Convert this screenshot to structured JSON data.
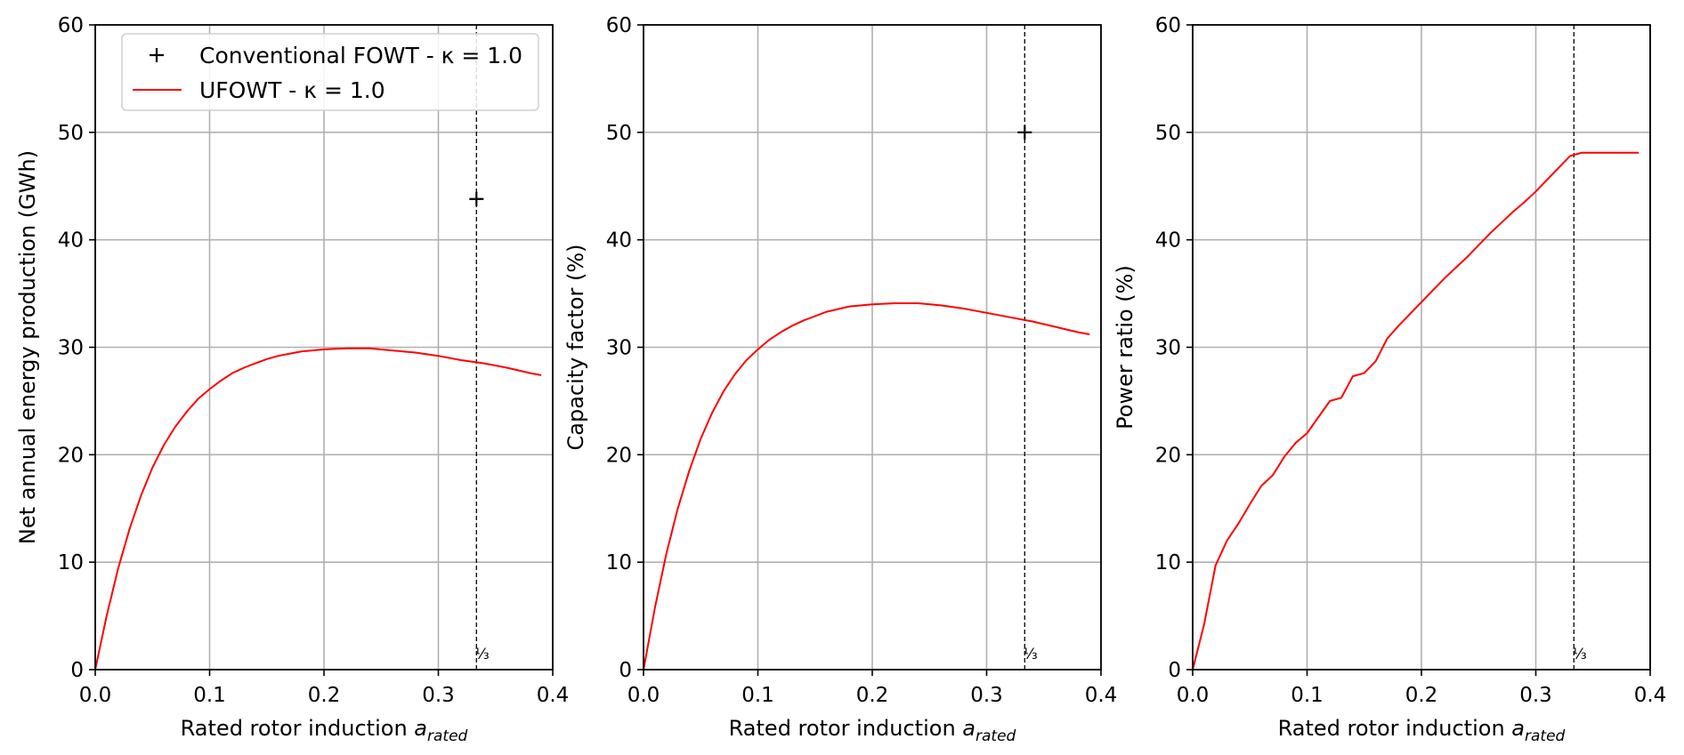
{
  "chart_data": [
    {
      "type": "line",
      "xlabel_main": "Rated rotor induction ",
      "xlabel_var": "a",
      "xlabel_sub": "rated",
      "ylabel": "Net annual energy production (GWh)",
      "xlim": [
        0.0,
        0.4
      ],
      "ylim": [
        0,
        60
      ],
      "xticks": [
        "0.0",
        "0.1",
        "0.2",
        "0.3",
        "0.4"
      ],
      "yticks": [
        "0",
        "10",
        "20",
        "30",
        "40",
        "50",
        "60"
      ],
      "grid": true,
      "legend_position": "top-left",
      "vline": {
        "x": 0.3333,
        "label": "⅓"
      },
      "series": [
        {
          "name": "UFOWT - κ = 1.0",
          "kind": "line",
          "color": "#ff0000",
          "x": [
            0.0,
            0.01,
            0.02,
            0.03,
            0.04,
            0.05,
            0.06,
            0.07,
            0.08,
            0.09,
            0.1,
            0.11,
            0.12,
            0.13,
            0.14,
            0.15,
            0.16,
            0.18,
            0.2,
            0.22,
            0.24,
            0.26,
            0.28,
            0.3,
            0.32,
            0.34,
            0.36,
            0.38,
            0.39
          ],
          "y": [
            0.0,
            5.0,
            9.4,
            13.1,
            16.2,
            18.8,
            20.9,
            22.6,
            24.0,
            25.2,
            26.1,
            26.9,
            27.6,
            28.1,
            28.5,
            28.9,
            29.2,
            29.6,
            29.8,
            29.9,
            29.9,
            29.7,
            29.5,
            29.2,
            28.8,
            28.5,
            28.1,
            27.6,
            27.4
          ]
        },
        {
          "name": "Conventional FOWT - κ = 1.0",
          "kind": "marker",
          "color": "#000000",
          "x": [
            0.3333
          ],
          "y": [
            43.8
          ]
        }
      ]
    },
    {
      "type": "line",
      "xlabel_main": "Rated rotor induction ",
      "xlabel_var": "a",
      "xlabel_sub": "rated",
      "ylabel": "Capacity factor (%)",
      "xlim": [
        0.0,
        0.4
      ],
      "ylim": [
        0,
        60
      ],
      "xticks": [
        "0.0",
        "0.1",
        "0.2",
        "0.3",
        "0.4"
      ],
      "yticks": [
        "0",
        "10",
        "20",
        "30",
        "40",
        "50",
        "60"
      ],
      "grid": true,
      "vline": {
        "x": 0.3333,
        "label": "⅓"
      },
      "series": [
        {
          "kind": "line",
          "color": "#ff0000",
          "x": [
            0.0,
            0.01,
            0.02,
            0.03,
            0.04,
            0.05,
            0.06,
            0.07,
            0.08,
            0.09,
            0.1,
            0.11,
            0.12,
            0.13,
            0.14,
            0.15,
            0.16,
            0.18,
            0.2,
            0.22,
            0.24,
            0.26,
            0.28,
            0.3,
            0.32,
            0.34,
            0.36,
            0.38,
            0.39
          ],
          "y": [
            0.0,
            5.8,
            10.8,
            15.0,
            18.5,
            21.5,
            23.9,
            25.9,
            27.5,
            28.8,
            29.8,
            30.7,
            31.4,
            32.0,
            32.5,
            32.9,
            33.3,
            33.8,
            34.0,
            34.1,
            34.1,
            33.9,
            33.6,
            33.2,
            32.8,
            32.4,
            31.9,
            31.4,
            31.2
          ]
        },
        {
          "kind": "marker",
          "color": "#000000",
          "x": [
            0.3333
          ],
          "y": [
            50.0
          ]
        }
      ]
    },
    {
      "type": "line",
      "xlabel_main": "Rated rotor induction ",
      "xlabel_var": "a",
      "xlabel_sub": "rated",
      "ylabel": "Power ratio (%)",
      "xlim": [
        0.0,
        0.4
      ],
      "ylim": [
        0,
        60
      ],
      "xticks": [
        "0.0",
        "0.1",
        "0.2",
        "0.3",
        "0.4"
      ],
      "yticks": [
        "0",
        "10",
        "20",
        "30",
        "40",
        "50",
        "60"
      ],
      "grid": true,
      "vline": {
        "x": 0.3333,
        "label": "⅓"
      },
      "series": [
        {
          "kind": "line",
          "color": "#ff0000",
          "x": [
            0.0,
            0.01,
            0.02,
            0.03,
            0.04,
            0.05,
            0.06,
            0.07,
            0.08,
            0.09,
            0.1,
            0.11,
            0.12,
            0.13,
            0.14,
            0.15,
            0.16,
            0.17,
            0.18,
            0.19,
            0.2,
            0.21,
            0.22,
            0.23,
            0.24,
            0.25,
            0.26,
            0.27,
            0.28,
            0.29,
            0.3,
            0.31,
            0.32,
            0.33,
            0.34,
            0.35,
            0.36,
            0.37,
            0.38,
            0.39
          ],
          "y": [
            0.0,
            4.2,
            9.7,
            12.0,
            13.6,
            15.4,
            17.1,
            18.1,
            19.8,
            21.1,
            22.0,
            23.5,
            25.0,
            25.3,
            27.3,
            27.6,
            28.7,
            30.8,
            32.0,
            33.1,
            34.2,
            35.3,
            36.4,
            37.4,
            38.4,
            39.5,
            40.6,
            41.6,
            42.6,
            43.5,
            44.5,
            45.6,
            46.7,
            47.8,
            48.1,
            48.1,
            48.1,
            48.1,
            48.1,
            48.1
          ]
        }
      ]
    }
  ]
}
